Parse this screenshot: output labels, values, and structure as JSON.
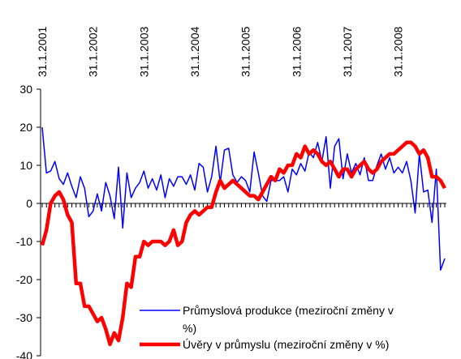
{
  "chart_data": {
    "type": "line",
    "categories": [
      "31.1.2001",
      null,
      null,
      null,
      null,
      null,
      null,
      null,
      null,
      null,
      null,
      null,
      "31.1.2002",
      null,
      null,
      null,
      null,
      null,
      null,
      null,
      null,
      null,
      null,
      null,
      "31.1.2003",
      null,
      null,
      null,
      null,
      null,
      null,
      null,
      null,
      null,
      null,
      null,
      "31.1.2004",
      null,
      null,
      null,
      null,
      null,
      null,
      null,
      null,
      null,
      null,
      null,
      "31.1.2005",
      null,
      null,
      null,
      null,
      null,
      null,
      null,
      null,
      null,
      null,
      null,
      "31.1.2006",
      null,
      null,
      null,
      null,
      null,
      null,
      null,
      null,
      null,
      null,
      null,
      "31.1.2007",
      null,
      null,
      null,
      null,
      null,
      null,
      null,
      null,
      null,
      null,
      null,
      "31.1.2008",
      null,
      null,
      null,
      null,
      null,
      null,
      null,
      null,
      null,
      null,
      null
    ],
    "series": [
      {
        "name": "Průmyslová produkce (meziroční změny v %)",
        "color": "#0000ff",
        "values": [
          20,
          8,
          8.5,
          11,
          6.5,
          5,
          8,
          4.5,
          1.5,
          7,
          4,
          -3.5,
          -2,
          2.5,
          -2,
          5.5,
          2,
          -4,
          9.5,
          -6.5,
          8,
          1.5,
          4,
          5.5,
          8.5,
          4,
          6.5,
          3.5,
          7.5,
          1.5,
          6.5,
          4.5,
          7,
          7,
          5,
          7.5,
          3.5,
          10.5,
          9.5,
          3,
          7,
          15,
          5.5,
          14,
          14.5,
          7.5,
          5.5,
          7,
          6,
          3,
          13.5,
          8,
          2,
          0.5,
          6,
          6,
          6,
          7,
          3,
          9,
          7.5,
          10.5,
          8.5,
          13.5,
          12,
          16,
          11,
          17.5,
          4,
          15,
          17,
          6.5,
          13,
          8,
          10.5,
          7.5,
          12,
          6,
          6,
          10,
          13,
          9,
          12,
          8,
          9.5,
          8,
          11,
          6,
          -2.5,
          13,
          3,
          3.5,
          -5,
          9,
          -17.5,
          -14.5
        ]
      },
      {
        "name": "Úvěry v průmyslu (meziroční změny v %)",
        "color": "#ff0000",
        "values": [
          -11,
          -7,
          0,
          2,
          3,
          1,
          -3,
          -5,
          -21,
          -21,
          -27,
          -27,
          -29,
          -31,
          -30,
          -33,
          -37,
          -34,
          -36,
          -30,
          -21,
          -22,
          -14,
          -14,
          -10,
          -11,
          -10,
          -10,
          -10,
          -11,
          -10,
          -7,
          -11,
          -10,
          -5,
          -3,
          -2,
          -3,
          -2,
          -1,
          -1,
          3,
          6,
          4,
          5,
          6,
          5,
          4,
          3,
          2,
          2,
          1,
          3,
          5,
          7,
          6,
          9,
          8,
          10,
          10,
          13,
          12,
          15,
          13,
          14,
          13,
          11,
          10,
          11,
          9,
          7,
          9,
          9,
          7,
          9,
          10,
          11,
          9,
          8,
          9,
          11,
          12,
          13,
          13,
          14,
          15,
          16,
          16,
          15,
          13,
          14,
          12,
          7,
          7,
          6,
          4
        ]
      }
    ],
    "ylim": [
      -40,
      30
    ],
    "yticks": [
      -40,
      -30,
      -20,
      -10,
      0,
      10,
      20,
      30
    ],
    "legend": "lower right"
  }
}
